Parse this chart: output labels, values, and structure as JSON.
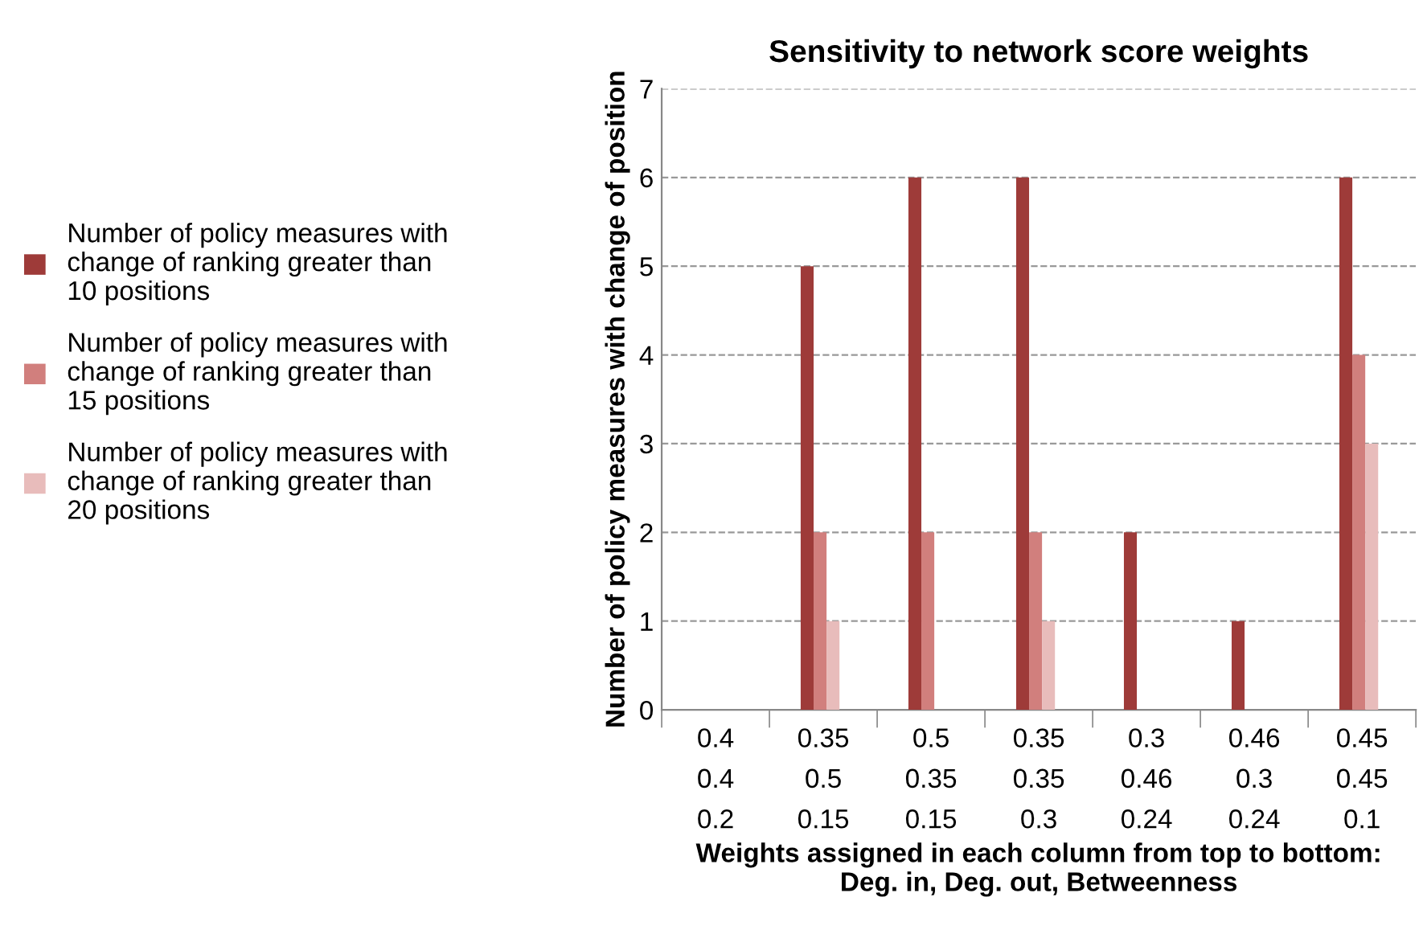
{
  "chart_data": {
    "type": "bar",
    "title": "Sensitivity to network score weights",
    "xlabel": "Weights assigned in each column from top to bottom:\nDeg. in, Deg. out, Betweenness",
    "ylabel": "Number of policy measures with change of position",
    "categories": [
      "0.4\n0.4\n0.2",
      "0.35\n0.5\n0.15",
      "0.5\n0.35\n0.15",
      "0.35\n0.35\n0.3",
      "0.3\n0.46\n0.24",
      "0.46\n0.3\n0.24",
      "0.45\n0.45\n0.1"
    ],
    "series": [
      {
        "name": "Number of policy measures with\nchange of ranking greater than\n10 positions",
        "color": "#9e3b39",
        "values": [
          0,
          5,
          6,
          6,
          2,
          1,
          6
        ]
      },
      {
        "name": "Number of policy measures with\nchange of ranking greater than\n15 positions",
        "color": "#d17f7d",
        "values": [
          0,
          2,
          2,
          2,
          0,
          0,
          4
        ]
      },
      {
        "name": "Number of policy measures with\nchange of ranking greater than\n20 positions",
        "color": "#e8bcbb",
        "values": [
          0,
          1,
          0,
          1,
          0,
          0,
          3
        ]
      }
    ],
    "ylim": [
      0,
      7
    ],
    "yticks": [
      0,
      1,
      2,
      3,
      4,
      5,
      6,
      7
    ],
    "grid": "y",
    "legend": "left"
  }
}
